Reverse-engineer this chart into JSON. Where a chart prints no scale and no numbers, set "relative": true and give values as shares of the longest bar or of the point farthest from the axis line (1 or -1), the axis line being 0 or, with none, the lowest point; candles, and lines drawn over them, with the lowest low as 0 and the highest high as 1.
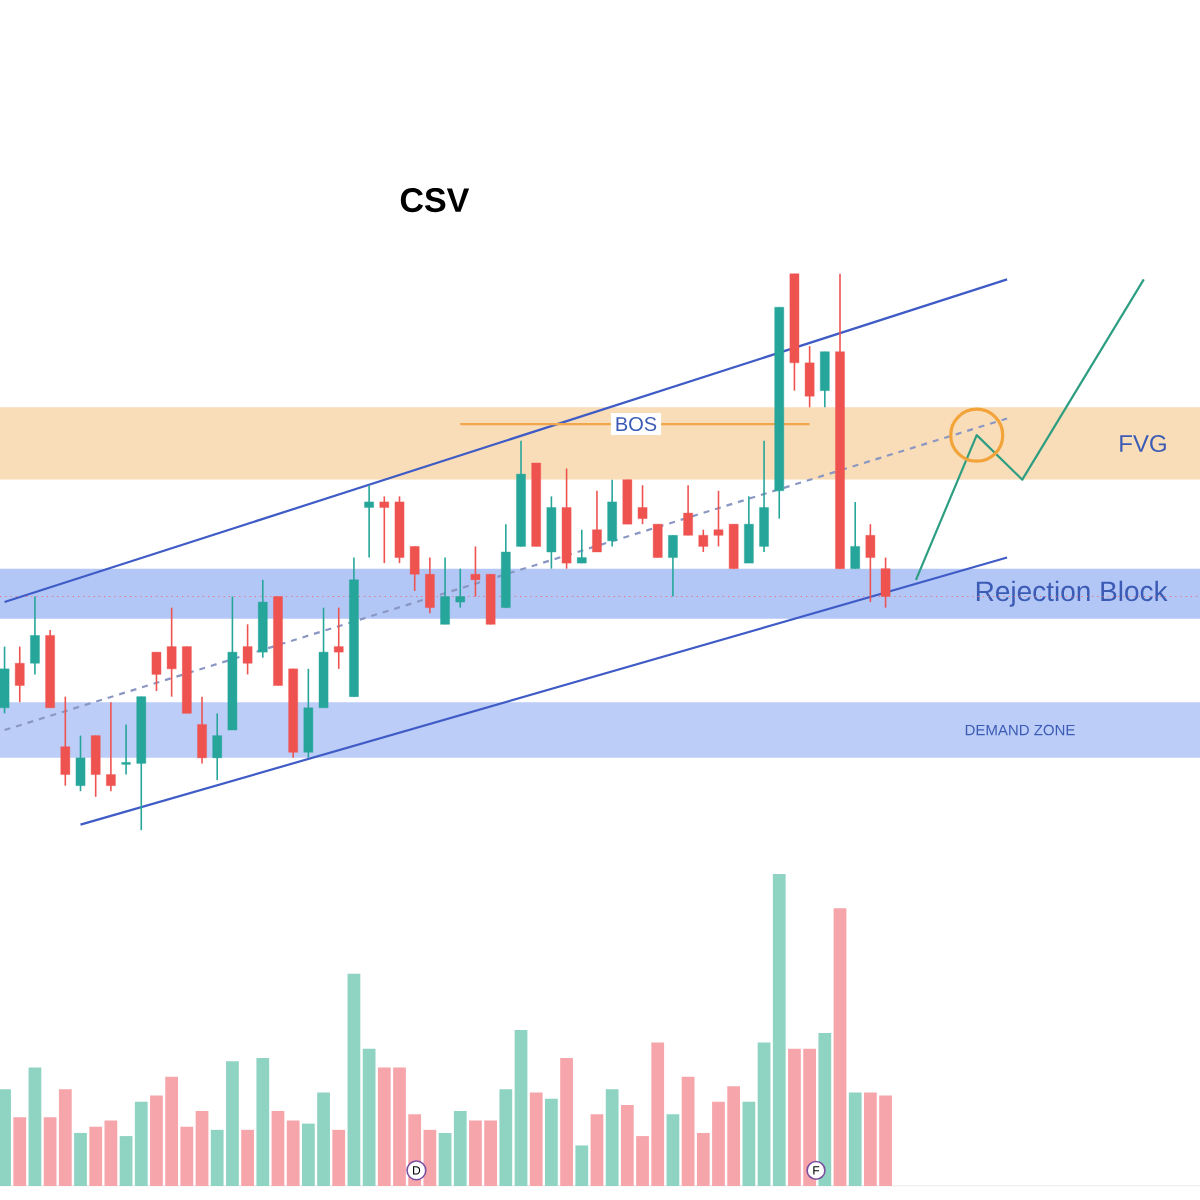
{
  "chart_data": [
    {
      "type": "candlestick",
      "title": "CSV",
      "relative": true,
      "categories": [
        null,
        null,
        null,
        null,
        null,
        null,
        null,
        null,
        null,
        null,
        null,
        null,
        null,
        null,
        null,
        null,
        null,
        null,
        null,
        null,
        null,
        null,
        null,
        null,
        null,
        null,
        null,
        null,
        null,
        null,
        null,
        null,
        null,
        null,
        null,
        null,
        null,
        null,
        null,
        null,
        null,
        null,
        null,
        null,
        null,
        null,
        null,
        null,
        null,
        null,
        null,
        null,
        null,
        null,
        null,
        null,
        null,
        null,
        null,
        null,
        null,
        null,
        null,
        null,
        null,
        null,
        null,
        null,
        null,
        null,
        null,
        null,
        null,
        null,
        null,
        null,
        null
      ],
      "ohlc": [
        [
          0.22,
          0.33,
          0.21,
          0.29
        ],
        [
          0.3,
          0.33,
          0.23,
          0.26
        ],
        [
          0.3,
          0.42,
          0.28,
          0.35
        ],
        [
          0.35,
          0.36,
          0.22,
          0.22
        ],
        [
          0.15,
          0.24,
          0.08,
          0.1
        ],
        [
          0.08,
          0.17,
          0.07,
          0.13
        ],
        [
          0.17,
          0.17,
          0.06,
          0.1
        ],
        [
          0.1,
          0.23,
          0.07,
          0.08
        ],
        [
          0.12,
          0.19,
          0.1,
          0.12
        ],
        [
          0.12,
          0.24,
          0,
          0.24
        ],
        [
          0.32,
          0.32,
          0.25,
          0.28
        ],
        [
          0.33,
          0.4,
          0.24,
          0.29
        ],
        [
          0.33,
          0.33,
          0.21,
          0.21
        ],
        [
          0.19,
          0.24,
          0.12,
          0.13
        ],
        [
          0.13,
          0.21,
          0.09,
          0.17
        ],
        [
          0.18,
          0.42,
          0.18,
          0.32
        ],
        [
          0.33,
          0.37,
          0.28,
          0.3
        ],
        [
          0.32,
          0.45,
          0.31,
          0.41
        ],
        [
          0.42,
          0.42,
          0.26,
          0.26
        ],
        [
          0.29,
          0.29,
          0.13,
          0.14
        ],
        [
          0.14,
          0.29,
          0.13,
          0.22
        ],
        [
          0.22,
          0.4,
          0.22,
          0.32
        ],
        [
          0.33,
          0.4,
          0.29,
          0.32
        ],
        [
          0.24,
          0.49,
          0.24,
          0.45
        ],
        [
          0.58,
          0.62,
          0.49,
          0.59
        ],
        [
          0.59,
          0.6,
          0.48,
          0.58
        ],
        [
          0.59,
          0.6,
          0.48,
          0.49
        ],
        [
          0.51,
          0.51,
          0.43,
          0.46
        ],
        [
          0.46,
          0.49,
          0.39,
          0.4
        ],
        [
          0.37,
          0.49,
          0.37,
          0.42
        ],
        [
          0.41,
          0.47,
          0.4,
          0.42
        ],
        [
          0.46,
          0.51,
          0.42,
          0.45
        ],
        [
          0.46,
          0.46,
          0.37,
          0.37
        ],
        [
          0.4,
          0.55,
          0.4,
          0.5
        ],
        [
          0.51,
          0.7,
          0.51,
          0.64
        ],
        [
          0.66,
          0.66,
          0.51,
          0.51
        ],
        [
          0.5,
          0.6,
          0.47,
          0.58
        ],
        [
          0.58,
          0.65,
          0.47,
          0.48
        ],
        [
          0.48,
          0.54,
          0.48,
          0.49
        ],
        [
          0.54,
          0.61,
          0.5,
          0.5
        ],
        [
          0.52,
          0.63,
          0.51,
          0.59
        ],
        [
          0.63,
          0.63,
          0.55,
          0.55
        ],
        [
          0.58,
          0.62,
          0.55,
          0.56
        ],
        [
          0.55,
          0.55,
          0.49,
          0.49
        ],
        [
          0.49,
          0.53,
          0.42,
          0.53
        ],
        [
          0.57,
          0.62,
          0.53,
          0.53
        ],
        [
          0.53,
          0.54,
          0.5,
          0.51
        ],
        [
          0.54,
          0.61,
          0.51,
          0.53
        ],
        [
          0.55,
          0.55,
          0.47,
          0.47
        ],
        [
          0.48,
          0.6,
          0.48,
          0.55
        ],
        [
          0.51,
          0.7,
          0.5,
          0.58
        ],
        [
          0.61,
          0.94,
          0.56,
          0.94
        ],
        [
          1,
          1,
          0.79,
          0.84
        ],
        [
          0.84,
          0.87,
          0.76,
          0.78
        ],
        [
          0.79,
          0.86,
          0.76,
          0.86
        ],
        [
          0.86,
          1,
          0.47,
          0.47
        ],
        [
          0.47,
          0.59,
          0.47,
          0.51
        ],
        [
          0.53,
          0.55,
          0.41,
          0.49
        ],
        [
          0.47,
          0.49,
          0.4,
          0.42
        ],
        null,
        null,
        null,
        null,
        null,
        null,
        null,
        null,
        null,
        null,
        null,
        null,
        null,
        null,
        null,
        null,
        null,
        null
      ],
      "colors": [
        "#26a69a",
        "#ef5350",
        "#26a69a",
        "#ef5350",
        "#ef5350",
        "#26a69a",
        "#ef5350",
        "#ef5350",
        "#26a69a",
        "#26a69a",
        "#ef5350",
        "#ef5350",
        "#ef5350",
        "#ef5350",
        "#26a69a",
        "#26a69a",
        "#ef5350",
        "#26a69a",
        "#ef5350",
        "#ef5350",
        "#26a69a",
        "#26a69a",
        "#ef5350",
        "#26a69a",
        "#26a69a",
        "#ef5350",
        "#ef5350",
        "#ef5350",
        "#ef5350",
        "#26a69a",
        "#26a69a",
        "#ef5350",
        "#ef5350",
        "#26a69a",
        "#26a69a",
        "#ef5350",
        "#26a69a",
        "#ef5350",
        "#26a69a",
        "#ef5350",
        "#26a69a",
        "#ef5350",
        "#ef5350",
        "#ef5350",
        "#26a69a",
        "#ef5350",
        "#ef5350",
        "#ef5350",
        "#ef5350",
        "#26a69a",
        "#26a69a",
        "#26a69a",
        "#ef5350",
        "#ef5350",
        "#26a69a",
        "#ef5350",
        "#26a69a",
        "#ef5350",
        "#ef5350",
        null,
        null,
        null,
        null,
        null,
        null,
        null,
        null,
        null,
        null,
        null,
        null,
        null,
        null,
        null,
        null,
        null,
        null
      ],
      "series": [
        {
          "type": "line",
          "values": [
            0.41,
            null,
            null,
            null,
            null,
            null,
            null,
            null,
            null,
            null,
            null,
            null,
            null,
            null,
            null,
            null,
            null,
            null,
            null,
            null,
            null,
            null,
            null,
            null,
            null,
            null,
            null,
            null,
            null,
            null,
            null,
            null,
            null,
            null,
            null,
            null,
            null,
            null,
            null,
            null,
            null,
            null,
            null,
            null,
            null,
            null,
            null,
            null,
            null,
            null,
            null,
            null,
            null,
            null,
            null,
            null,
            null,
            null,
            null,
            null,
            null,
            null,
            null,
            null,
            null,
            null,
            0.99,
            null,
            null,
            null,
            null,
            null,
            null,
            null,
            null,
            null,
            null
          ],
          "color": "#3f5bc6"
        },
        {
          "type": "line",
          "values": [
            null,
            null,
            null,
            null,
            null,
            0.01,
            null,
            null,
            null,
            null,
            null,
            null,
            null,
            null,
            null,
            null,
            null,
            null,
            null,
            null,
            null,
            null,
            null,
            null,
            null,
            null,
            null,
            null,
            null,
            null,
            null,
            null,
            null,
            null,
            null,
            null,
            null,
            null,
            null,
            null,
            null,
            null,
            null,
            null,
            null,
            null,
            null,
            null,
            null,
            null,
            null,
            null,
            null,
            null,
            null,
            null,
            null,
            null,
            null,
            null,
            null,
            null,
            null,
            null,
            null,
            null,
            0.49,
            null,
            null,
            null,
            null,
            null,
            null,
            null,
            null,
            null,
            null
          ],
          "color": "#3f5bc6"
        },
        {
          "type": "line",
          "values": [
            0.18,
            null,
            null,
            null,
            null,
            null,
            null,
            null,
            null,
            null,
            null,
            null,
            null,
            null,
            null,
            null,
            null,
            null,
            null,
            null,
            null,
            null,
            null,
            null,
            null,
            null,
            null,
            null,
            null,
            null,
            null,
            null,
            null,
            null,
            null,
            null,
            null,
            null,
            null,
            null,
            null,
            null,
            null,
            null,
            null,
            null,
            null,
            null,
            null,
            null,
            null,
            null,
            null,
            null,
            null,
            null,
            null,
            null,
            null,
            null,
            null,
            null,
            null,
            null,
            null,
            null,
            0.74,
            null,
            null,
            null,
            null,
            null,
            null,
            null,
            null,
            null,
            null
          ],
          "color": "#8a97c2",
          "line_style": "dashed"
        },
        {
          "type": "line",
          "values": [
            null,
            null,
            null,
            null,
            null,
            null,
            null,
            null,
            null,
            null,
            null,
            null,
            null,
            null,
            null,
            null,
            null,
            null,
            null,
            null,
            null,
            null,
            null,
            null,
            null,
            null,
            null,
            null,
            null,
            null,
            0.73,
            null,
            null,
            null,
            null,
            null,
            null,
            null,
            null,
            null,
            null,
            null,
            null,
            null,
            null,
            null,
            null,
            null,
            null,
            null,
            null,
            null,
            null,
            0.73,
            null,
            null,
            null,
            null,
            null,
            null,
            null,
            null,
            null,
            null,
            null,
            null,
            null,
            null,
            null,
            null,
            null,
            null,
            null,
            null,
            null,
            null,
            null
          ],
          "color": "#f0a64a"
        },
        {
          "type": "line",
          "values": [
            null,
            null,
            null,
            null,
            null,
            null,
            null,
            null,
            null,
            null,
            null,
            null,
            null,
            null,
            null,
            null,
            null,
            null,
            null,
            null,
            null,
            null,
            null,
            null,
            null,
            null,
            null,
            null,
            null,
            null,
            null,
            null,
            null,
            null,
            null,
            null,
            null,
            null,
            null,
            null,
            null,
            null,
            null,
            null,
            null,
            null,
            null,
            null,
            null,
            null,
            null,
            null,
            null,
            null,
            null,
            null,
            null,
            null,
            null,
            null,
            0.45,
            null,
            null,
            null,
            0.71,
            null,
            null,
            0.63,
            null,
            null,
            null,
            null,
            null,
            null,
            null,
            0.99,
            null
          ],
          "color": "#2e9e82"
        }
      ],
      "bands": [
        {
          "axis": "y",
          "from": 0.63,
          "to": 0.76,
          "label": "FVG",
          "color": "#f9ddb8"
        },
        {
          "axis": "y",
          "from": 0.38,
          "to": 0.47,
          "label": "Rejection Block",
          "color": "#b3c7f7"
        },
        {
          "axis": "y",
          "from": 0.13,
          "to": 0.23,
          "label": "DEMAND ZONE",
          "color": "#bccdf8"
        }
      ],
      "ref_lines": [
        {
          "axis": "y",
          "value": 0.42,
          "color": "#e57373",
          "line_style": "dotted"
        }
      ],
      "annotations": [
        {
          "text": "BOS",
          "y": 0.73
        }
      ]
    },
    {
      "type": "bar",
      "relative": true,
      "categories": [
        null,
        null,
        null,
        null,
        null,
        null,
        null,
        null,
        null,
        null,
        null,
        null,
        null,
        null,
        null,
        null,
        null,
        null,
        null,
        null,
        null,
        null,
        null,
        null,
        null,
        null,
        null,
        null,
        null,
        null,
        null,
        null,
        null,
        null,
        null,
        null,
        null,
        null,
        null,
        null,
        null,
        null,
        null,
        null,
        null,
        null,
        null,
        null,
        null,
        null,
        null,
        null,
        null,
        null,
        null,
        null,
        null,
        null,
        null,
        null,
        null,
        null,
        null,
        null,
        null,
        null,
        null,
        null,
        null,
        null,
        null,
        null,
        null,
        null,
        null,
        null,
        null
      ],
      "values": [
        0.31,
        0.22,
        0.38,
        0.22,
        0.31,
        0.17,
        0.19,
        0.21,
        0.16,
        0.27,
        0.29,
        0.35,
        0.19,
        0.24,
        0.18,
        0.4,
        0.18,
        0.41,
        0.24,
        0.21,
        0.2,
        0.3,
        0.18,
        0.68,
        0.44,
        0.38,
        0.38,
        0.23,
        0.18,
        0.17,
        0.24,
        0.21,
        0.21,
        0.31,
        0.5,
        0.3,
        0.28,
        0.41,
        0.13,
        0.23,
        0.31,
        0.26,
        0.16,
        0.46,
        0.23,
        0.35,
        0.17,
        0.27,
        0.32,
        0.27,
        0.46,
        1,
        0.44,
        0.44,
        0.49,
        0.89,
        0.3,
        0.3,
        0.29,
        null,
        null,
        null,
        null,
        null,
        null,
        null,
        null,
        null,
        null,
        null,
        null,
        null,
        null,
        null,
        null,
        null,
        null
      ],
      "colors": [
        "#8fd3c3",
        "#f6a5aa",
        "#8fd3c3",
        "#f6a5aa",
        "#f6a5aa",
        "#8fd3c3",
        "#f6a5aa",
        "#f6a5aa",
        "#8fd3c3",
        "#8fd3c3",
        "#f6a5aa",
        "#f6a5aa",
        "#f6a5aa",
        "#f6a5aa",
        "#8fd3c3",
        "#8fd3c3",
        "#f6a5aa",
        "#8fd3c3",
        "#f6a5aa",
        "#f6a5aa",
        "#8fd3c3",
        "#8fd3c3",
        "#f6a5aa",
        "#8fd3c3",
        "#8fd3c3",
        "#f6a5aa",
        "#f6a5aa",
        "#f6a5aa",
        "#f6a5aa",
        "#8fd3c3",
        "#8fd3c3",
        "#f6a5aa",
        "#f6a5aa",
        "#8fd3c3",
        "#8fd3c3",
        "#f6a5aa",
        "#8fd3c3",
        "#f6a5aa",
        "#8fd3c3",
        "#f6a5aa",
        "#8fd3c3",
        "#f6a5aa",
        "#f6a5aa",
        "#f6a5aa",
        "#8fd3c3",
        "#f6a5aa",
        "#f6a5aa",
        "#f6a5aa",
        "#f6a5aa",
        "#8fd3c3",
        "#8fd3c3",
        "#8fd3c3",
        "#f6a5aa",
        "#f6a5aa",
        "#8fd3c3",
        "#f6a5aa",
        "#8fd3c3",
        "#f6a5aa",
        "#f6a5aa",
        null,
        null,
        null,
        null,
        null,
        null,
        null,
        null,
        null,
        null,
        null,
        null,
        null,
        null,
        null,
        null,
        null,
        null
      ],
      "annotations": [
        {
          "text": "D",
          "y": 0.05
        },
        {
          "text": "F",
          "y": 0.05
        }
      ]
    }
  ]
}
